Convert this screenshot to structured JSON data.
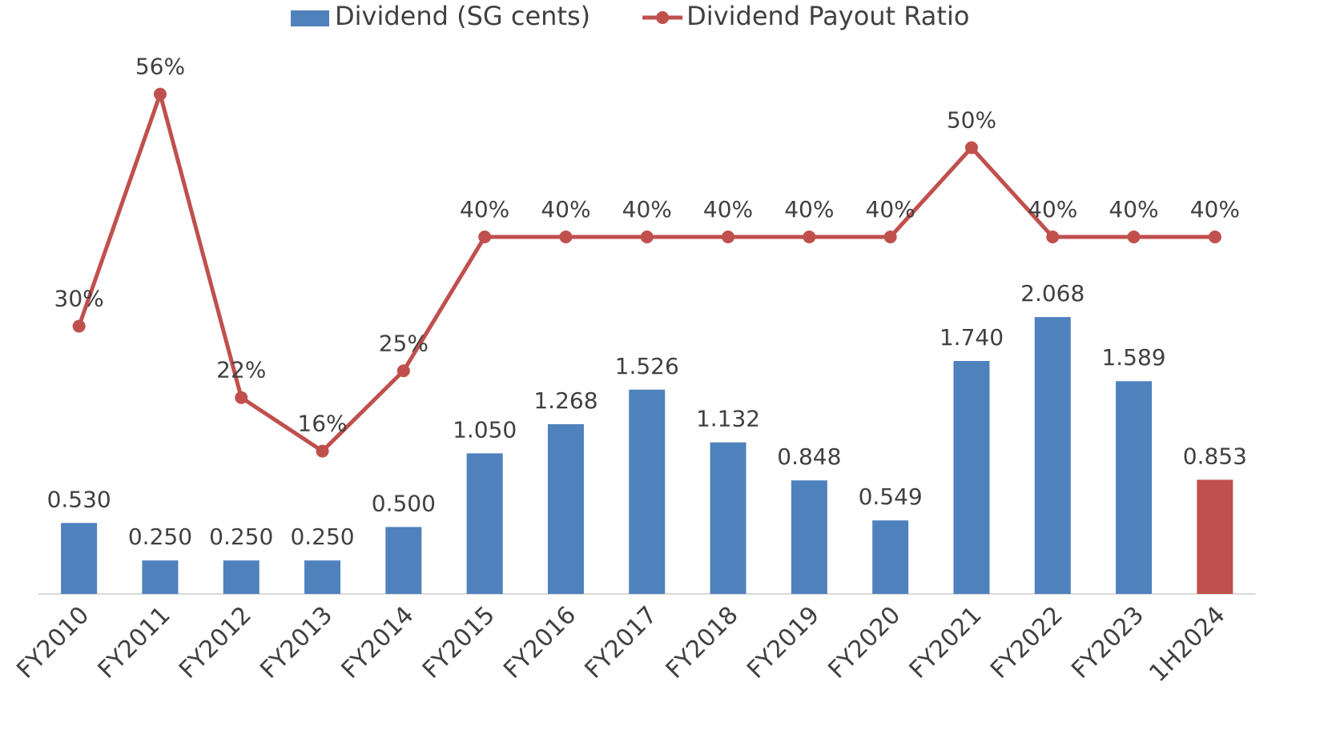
{
  "chart_data": {
    "type": "bar_line",
    "categories": [
      "FY2010",
      "FY2011",
      "FY2012",
      "FY2013",
      "FY2014",
      "FY2015",
      "FY2016",
      "FY2017",
      "FY2018",
      "FY2019",
      "FY2020",
      "FY2021",
      "FY2022",
      "FY2023",
      "1H2024"
    ],
    "series": [
      {
        "name": "Dividend (SG cents)",
        "type": "bar",
        "color": "#4f81bd",
        "colors": [
          "#4f81bd",
          "#4f81bd",
          "#4f81bd",
          "#4f81bd",
          "#4f81bd",
          "#4f81bd",
          "#4f81bd",
          "#4f81bd",
          "#4f81bd",
          "#4f81bd",
          "#4f81bd",
          "#4f81bd",
          "#4f81bd",
          "#4f81bd",
          "#c0504d"
        ],
        "values": [
          0.53,
          0.25,
          0.25,
          0.25,
          0.5,
          1.05,
          1.268,
          1.526,
          1.132,
          0.848,
          0.549,
          1.74,
          2.068,
          1.589,
          0.853
        ],
        "value_labels": [
          "0.530",
          "0.250",
          "0.250",
          "0.250",
          "0.500",
          "1.050",
          "1.268",
          "1.526",
          "1.132",
          "0.848",
          "0.549",
          "1.740",
          "2.068",
          "1.589",
          "0.853"
        ]
      },
      {
        "name": "Dividend Payout Ratio",
        "type": "line",
        "axis": "y2",
        "color": "#c0504d",
        "values": [
          30,
          56,
          22,
          16,
          25,
          40,
          40,
          40,
          40,
          40,
          40,
          50,
          40,
          40,
          40
        ],
        "value_labels": [
          "30%",
          "56%",
          "22%",
          "16%",
          "25%",
          "40%",
          "40%",
          "40%",
          "40%",
          "40%",
          "40%",
          "50%",
          "40%",
          "40%",
          "40%"
        ]
      }
    ],
    "ylim": [
      0,
      4
    ],
    "y2lim": [
      0,
      60
    ],
    "legend": "top"
  }
}
